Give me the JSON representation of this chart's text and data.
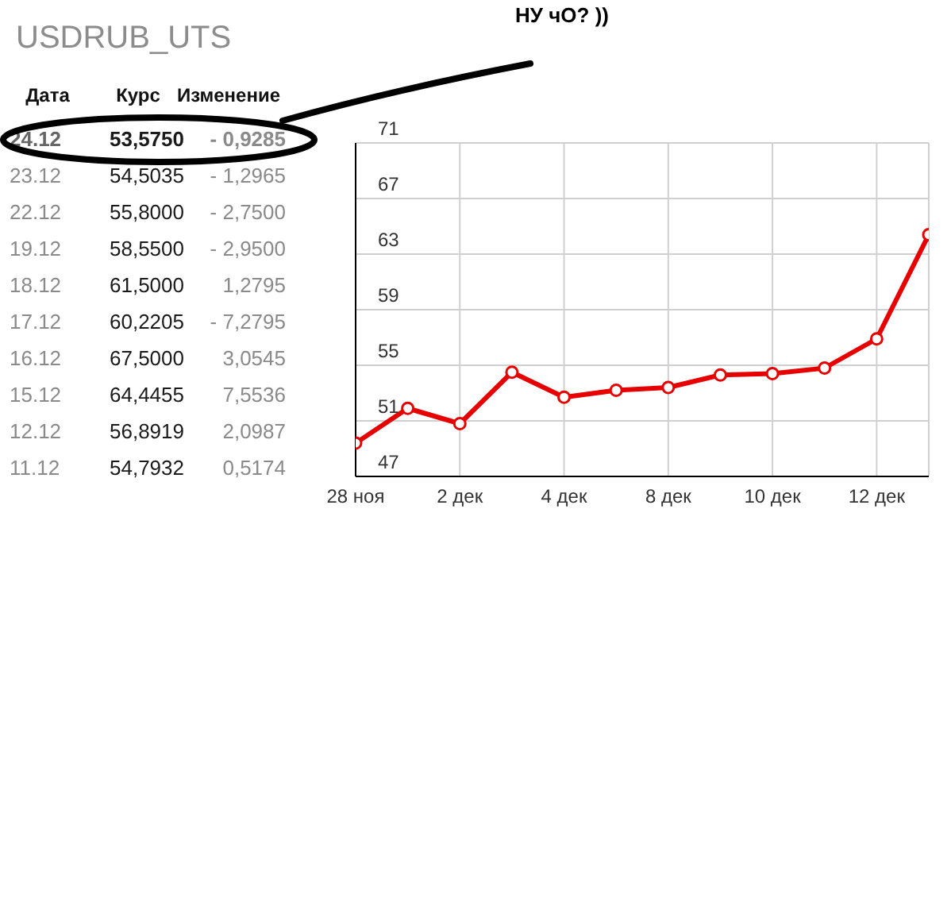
{
  "chart_data": [
    {
      "type": "other",
      "title": "USDRUB_UTS",
      "annotations": [
        "Дата",
        "Курс",
        "Изменение",
        "24.12",
        "53,5750",
        "- 0,9285",
        "23.12",
        "54,5035",
        "- 1,2965",
        "22.12",
        "55,8000",
        "- 2,7500",
        "19.12",
        "58,5500",
        "- 2,9500",
        "18.12",
        "61,5000",
        "1,2795",
        "17.12",
        "60,2205",
        "- 7,2795",
        "16.12",
        "67,5000",
        "3,0545",
        "15.12",
        "64,4455",
        "7,5536",
        "12.12",
        "56,8919",
        "2,0987",
        "11.12",
        "54,7932",
        "0,5174"
      ]
    },
    {
      "type": "line",
      "title": "НУ чО? ))",
      "categories": [
        "28 ноя",
        null,
        "2 дек",
        null,
        "4 дек",
        null,
        "8 дек",
        null,
        "10 дек",
        null,
        "12 дек",
        null
      ],
      "series": [
        {
          "color": "#e60000",
          "values": [
            49.4,
            51.9,
            50.8,
            54.5,
            52.7,
            53.2,
            53.4,
            54.3,
            54.4,
            54.8,
            56.9,
            64.4
          ]
        }
      ],
      "ylim": [
        47,
        71
      ],
      "yticks": [
        47,
        51,
        55,
        59,
        63,
        67,
        71
      ],
      "grid": true,
      "marker": "circle",
      "line_style": "solid"
    }
  ]
}
